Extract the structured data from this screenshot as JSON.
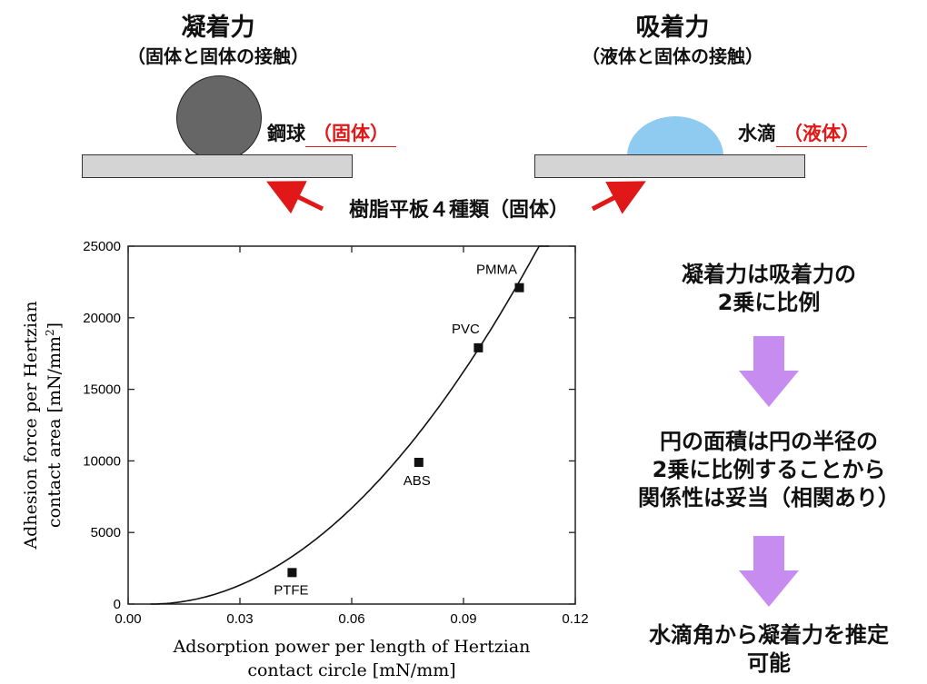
{
  "top": {
    "left_title": "凝着力",
    "left_sub": "（固体と固体の接触）",
    "left_label": "鋼球",
    "left_label_tag": "（固体）",
    "right_title": "吸着力",
    "right_sub": "（液体と固体の接触）",
    "right_label": "水滴",
    "right_label_tag": "（液体）",
    "plate_label": "樹脂平板４種類（固体）"
  },
  "flow": {
    "step1_line1": "凝着力は吸着力の",
    "step1_line2": "2乗に比例",
    "step2_line1": "円の面積は円の半径の",
    "step2_line2": "2乗に比例することから",
    "step2_line3": "関係性は妥当（相関あり）",
    "step3_line1": "水滴角から凝着力を推定",
    "step3_line2": "可能"
  },
  "colors": {
    "arrow_red": "#e01818",
    "down_arrow": "#c78cf0",
    "droplet": "#8fcbf0",
    "ball": "#666666"
  },
  "chart_data": {
    "type": "scatter",
    "xlabel_line1": "Adsorption power per length of Hertzian",
    "xlabel_line2": "contact circle [mN/mm]",
    "ylabel_line1": "Adhesion force per Hertzian",
    "ylabel_line2": "contact area [mN/mm",
    "ylabel_sup": "2",
    "ylabel_close": "]",
    "xlim": [
      0,
      0.12
    ],
    "ylim": [
      0,
      25000
    ],
    "x_ticks": [
      "0.00",
      "0.03",
      "0.06",
      "0.09",
      "0.12"
    ],
    "x_tick_values": [
      0,
      0.03,
      0.06,
      0.09,
      0.12
    ],
    "y_ticks": [
      "0",
      "5000",
      "10000",
      "15000",
      "20000",
      "25000"
    ],
    "y_tick_values": [
      0,
      5000,
      10000,
      15000,
      20000,
      25000
    ],
    "points": [
      {
        "label": "PTFE",
        "x": 0.044,
        "y": 2200
      },
      {
        "label": "ABS",
        "x": 0.078,
        "y": 9900
      },
      {
        "label": "PVC",
        "x": 0.094,
        "y": 17900
      },
      {
        "label": "PMMA",
        "x": 0.105,
        "y": 22100
      }
    ],
    "fit_curve": {
      "x0": 0.006,
      "x_end": 0.113,
      "a": 2300000
    }
  }
}
